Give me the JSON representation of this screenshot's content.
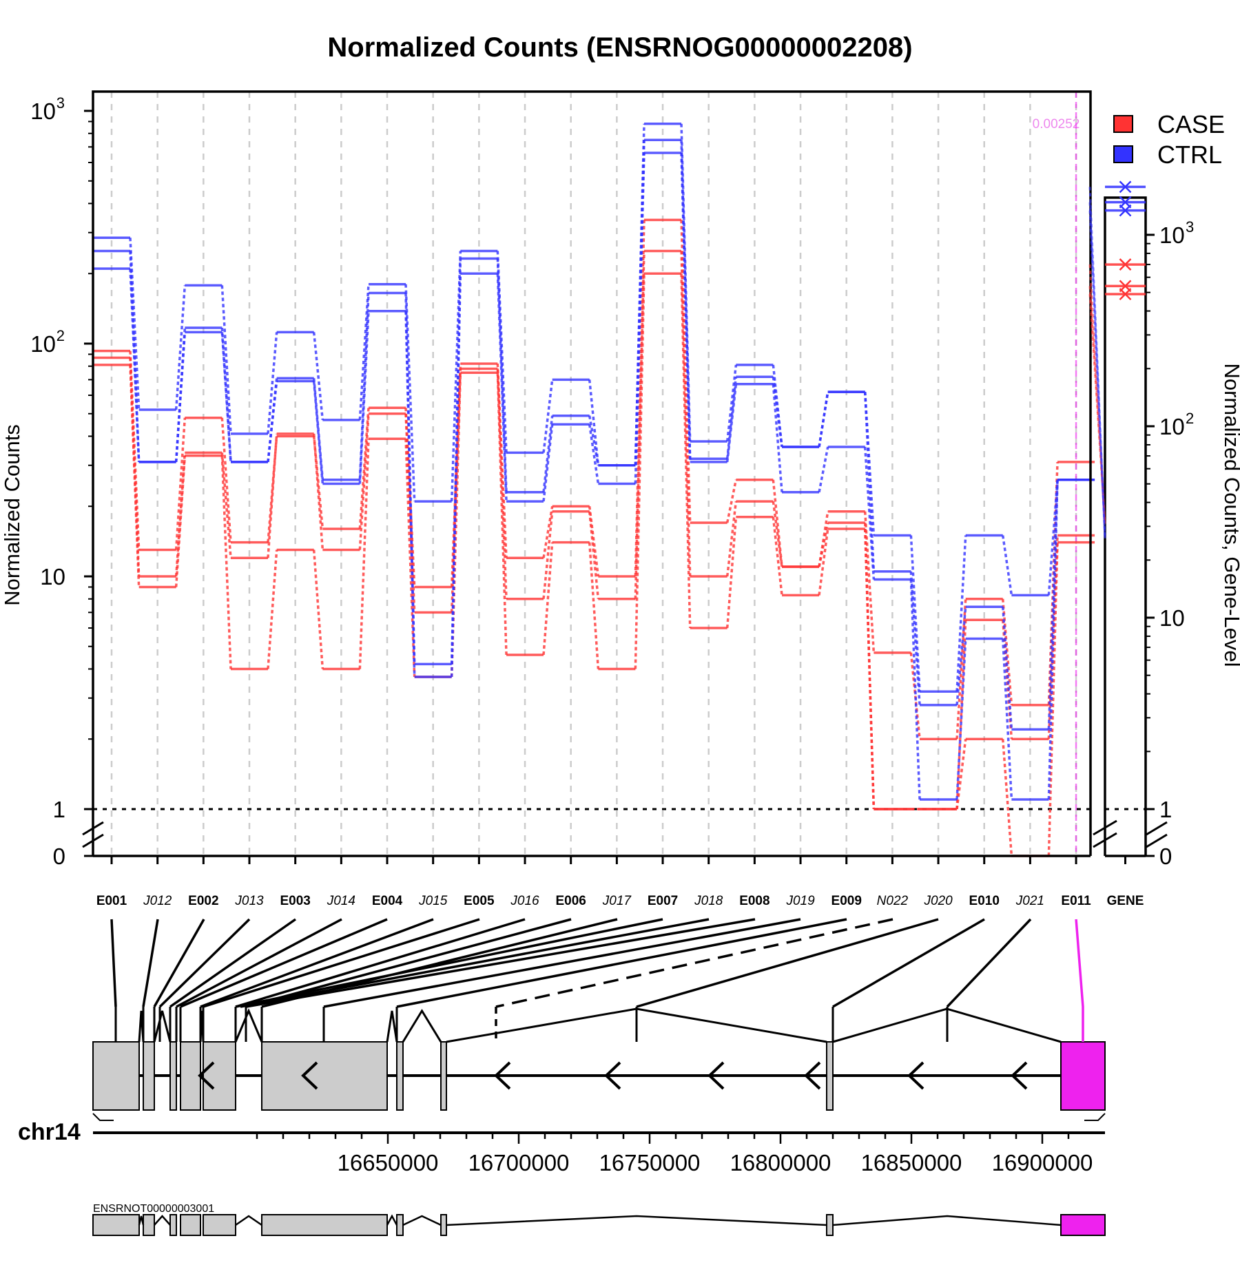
{
  "chart_data": {
    "type": "line",
    "title": "Normalized Counts (ENSRNOG00000002208)",
    "ylabel": "Normalized Counts",
    "ylabel_right": "Normalized Counts, Gene-Level",
    "yscale": "log",
    "ylim": [
      0,
      1000
    ],
    "yticks": [
      "0",
      "1",
      "10",
      "10",
      "10"
    ],
    "yticks_sup": [
      "",
      "",
      "",
      "2",
      "3"
    ],
    "yticks_right": [
      "0",
      "1",
      "10",
      "10",
      "10"
    ],
    "yticks_right_sup": [
      "",
      "",
      "",
      "2",
      "3"
    ],
    "reference_line": 1,
    "grid": true,
    "legend_position": "top-right",
    "colors": {
      "CASE": "#ff3333",
      "CTRL": "#3333ff",
      "highlight": "#ee22ee",
      "pvalue": "#ee88ee",
      "exon": "#cccccc"
    },
    "features": [
      "E001",
      "J012",
      "E002",
      "J013",
      "E003",
      "J014",
      "E004",
      "J015",
      "E005",
      "J016",
      "E006",
      "J017",
      "E007",
      "J018",
      "E008",
      "J019",
      "E009",
      "N022",
      "J020",
      "E010",
      "J021",
      "E011"
    ],
    "junction_features": [
      "J012",
      "J013",
      "J014",
      "J015",
      "J016",
      "J017",
      "J018",
      "J019",
      "N022",
      "J020",
      "J021"
    ],
    "highlighted_feature": "E011",
    "pvalue_label": "0.00252",
    "series": [
      {
        "name": "CASE",
        "group": "CASE",
        "values": [
          93,
          13,
          48,
          14,
          40,
          16,
          53,
          9,
          82,
          12,
          20,
          10,
          340,
          17,
          26,
          11,
          19,
          4.7,
          2,
          8,
          2.8,
          31
        ]
      },
      {
        "name": "CASE",
        "group": "CASE",
        "values": [
          87,
          10,
          34,
          12,
          41,
          13,
          50,
          7,
          78,
          8,
          19,
          8,
          250,
          10,
          21,
          11,
          17,
          1,
          1,
          6.5,
          2,
          15
        ]
      },
      {
        "name": "CASE",
        "group": "CASE",
        "values": [
          81,
          9,
          33,
          4,
          13,
          4,
          39,
          3.7,
          75,
          4.6,
          14,
          4,
          200,
          6,
          18,
          8.3,
          16,
          1,
          1,
          2,
          0,
          14
        ]
      },
      {
        "name": "CTRL",
        "group": "CTRL",
        "values": [
          285,
          52,
          178,
          41,
          112,
          47,
          180,
          21,
          250,
          34,
          70,
          30,
          880,
          38,
          81,
          36,
          62,
          15,
          3.2,
          15,
          8.3,
          26
        ]
      },
      {
        "name": "CTRL",
        "group": "CTRL",
        "values": [
          250,
          31,
          117,
          31,
          71,
          26,
          165,
          4.2,
          232,
          23,
          49,
          30,
          750,
          32,
          72,
          36,
          62,
          10.5,
          2.8,
          7.4,
          2.2,
          26
        ]
      },
      {
        "name": "CTRL",
        "group": "CTRL",
        "values": [
          210,
          31,
          112,
          31,
          69,
          25,
          138,
          3.7,
          200,
          21,
          45,
          25,
          660,
          31,
          67,
          23,
          36,
          9.7,
          1.1,
          5.4,
          1.1,
          26
        ]
      }
    ],
    "gene_level": {
      "label": "GENE",
      "CASE": [
        700,
        540,
        490
      ],
      "CTRL": [
        1780,
        1480,
        1340
      ]
    },
    "legend": [
      "CASE",
      "CTRL"
    ],
    "genome": {
      "chromosome": "chr14",
      "axis_labels": [
        "16650000",
        "16700000",
        "16750000",
        "16800000",
        "16850000",
        "16900000"
      ],
      "axis_positions": [
        16650000,
        16700000,
        16750000,
        16800000,
        16850000,
        16900000
      ],
      "transcript": "ENSRNOT00000003001",
      "strand": "minus"
    }
  }
}
